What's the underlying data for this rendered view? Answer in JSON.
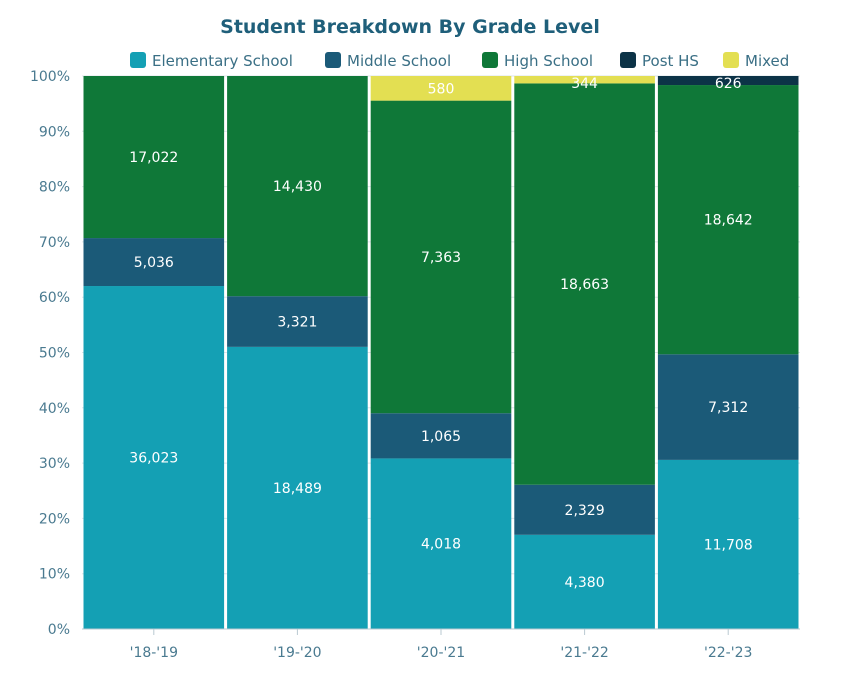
{
  "chart_data": {
    "type": "bar",
    "stacked": "percent",
    "title": "Student Breakdown By Grade Level",
    "xlabel": "",
    "ylabel": "",
    "ylim": [
      0,
      100
    ],
    "y_ticks": [
      "0%",
      "10%",
      "20%",
      "30%",
      "40%",
      "50%",
      "60%",
      "70%",
      "80%",
      "90%",
      "100%"
    ],
    "categories": [
      "'18-'19",
      "'19-'20",
      "'20-'21",
      "'21-'22",
      "'22-'23"
    ],
    "legend_position": "top",
    "series": [
      {
        "name": "Elementary School",
        "color": "#14a0b4",
        "values": [
          36023,
          18489,
          4018,
          4380,
          11708
        ],
        "labels": [
          "36,023",
          "18,489",
          "4,018",
          "4,380",
          "11,708"
        ]
      },
      {
        "name": "Middle School",
        "color": "#1b5a78",
        "values": [
          5036,
          3321,
          1065,
          2329,
          7312
        ],
        "labels": [
          "5,036",
          "3,321",
          "1,065",
          "2,329",
          "7,312"
        ]
      },
      {
        "name": "High School",
        "color": "#0f7838",
        "values": [
          17022,
          14430,
          7363,
          18663,
          18642
        ],
        "labels": [
          "17,022",
          "14,430",
          "7,363",
          "18,663",
          "18,642"
        ]
      },
      {
        "name": "Post HS",
        "color": "#0c3347",
        "values": [
          0,
          0,
          0,
          0,
          626
        ],
        "labels": [
          "",
          "",
          "",
          "",
          "626"
        ]
      },
      {
        "name": "Mixed",
        "color": "#e3df52",
        "values": [
          0,
          0,
          580,
          344,
          0
        ],
        "labels": [
          "",
          "",
          "580",
          "344",
          ""
        ]
      }
    ]
  }
}
